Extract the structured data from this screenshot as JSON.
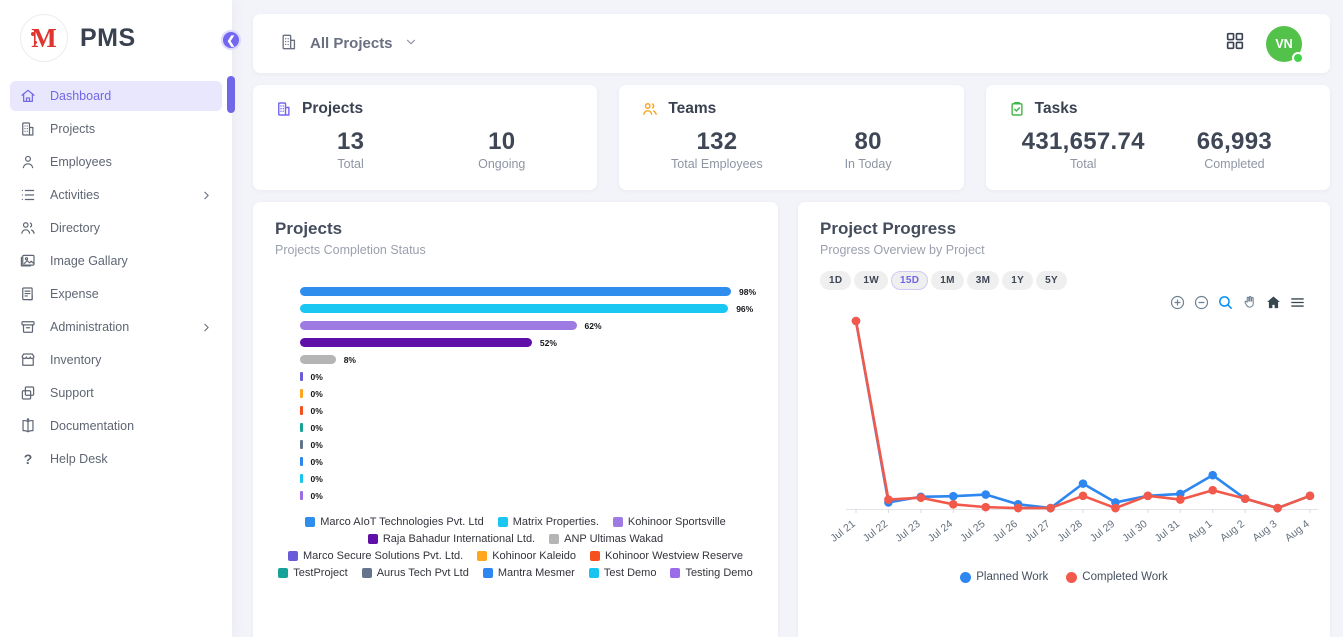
{
  "app": {
    "name": "PMS",
    "logo_letter": "M"
  },
  "sidebar": {
    "items": [
      {
        "label": "Dashboard",
        "icon": "home-icon",
        "active": true,
        "has_submenu": false
      },
      {
        "label": "Projects",
        "icon": "building-icon",
        "active": false,
        "has_submenu": false
      },
      {
        "label": "Employees",
        "icon": "person-icon",
        "active": false,
        "has_submenu": false
      },
      {
        "label": "Activities",
        "icon": "list-icon",
        "active": false,
        "has_submenu": true
      },
      {
        "label": "Directory",
        "icon": "people-icon",
        "active": false,
        "has_submenu": false
      },
      {
        "label": "Image Gallary",
        "icon": "image-icon",
        "active": false,
        "has_submenu": false
      },
      {
        "label": "Expense",
        "icon": "receipt-icon",
        "active": false,
        "has_submenu": false
      },
      {
        "label": "Administration",
        "icon": "archive-icon",
        "active": false,
        "has_submenu": true
      },
      {
        "label": "Inventory",
        "icon": "store-icon",
        "active": false,
        "has_submenu": false
      },
      {
        "label": "Support",
        "icon": "copy-icon",
        "active": false,
        "has_submenu": false
      },
      {
        "label": "Documentation",
        "icon": "book-icon",
        "active": false,
        "has_submenu": false
      },
      {
        "label": "Help Desk",
        "icon": "question-icon",
        "active": false,
        "has_submenu": false
      }
    ]
  },
  "header": {
    "filter_label": "All Projects",
    "avatar_initials": "VN"
  },
  "stats": [
    {
      "title": "Projects",
      "icon": "building-icon",
      "icon_color": "#7367f0",
      "metrics": [
        {
          "value": "13",
          "label": "Total"
        },
        {
          "value": "10",
          "label": "Ongoing"
        }
      ]
    },
    {
      "title": "Teams",
      "icon": "people-icon",
      "icon_color": "#f5a623",
      "metrics": [
        {
          "value": "132",
          "label": "Total Employees"
        },
        {
          "value": "80",
          "label": "In Today"
        }
      ]
    },
    {
      "title": "Tasks",
      "icon": "clipboard-check-icon",
      "icon_color": "#43b649",
      "metrics": [
        {
          "value": "431,657.74",
          "label": "Total"
        },
        {
          "value": "66,993",
          "label": "Completed"
        }
      ]
    }
  ],
  "panels": {
    "projects": {
      "title": "Projects",
      "subtitle": "Projects Completion Status"
    },
    "progress": {
      "title": "Project Progress",
      "subtitle": "Progress Overview by Project",
      "ranges": [
        "1D",
        "1W",
        "15D",
        "1M",
        "3M",
        "1Y",
        "5Y"
      ],
      "active_range": "15D"
    }
  },
  "chart_data": [
    {
      "type": "bar",
      "orientation": "horizontal",
      "title": "Projects",
      "subtitle": "Projects Completion Status",
      "unit": "%",
      "xlim": [
        0,
        100
      ],
      "legend_position": "bottom",
      "categories": [
        "Marco AIoT Technologies Pvt. Ltd",
        "Matrix Properties.",
        "Kohinoor Sportsville",
        "Raja Bahadur International Ltd.",
        "ANP Ultimas Wakad",
        "Marco Secure Solutions Pvt. Ltd.",
        "Kohinoor Kaleido",
        "Kohinoor Westview Reserve",
        "TestProject",
        "Aurus Tech Pvt Ltd",
        "Mantra Mesmer",
        "Test Demo",
        "Testing Demo"
      ],
      "values": [
        98,
        96,
        62,
        52,
        8,
        0,
        0,
        0,
        0,
        0,
        0,
        0,
        0
      ],
      "colors": [
        "#2F8DEE",
        "#1AC6F2",
        "#9D7BE3",
        "#5E10A8",
        "#B5B5B5",
        "#6A5BD8",
        "#FFA51F",
        "#F4511E",
        "#17A398",
        "#64748B",
        "#2E86F0",
        "#18C5F0",
        "#9B6CE8"
      ]
    },
    {
      "type": "line",
      "title": "Project Progress",
      "subtitle": "Progress Overview by Project",
      "ylim": [
        0,
        105
      ],
      "grid": false,
      "legend_position": "bottom",
      "x": [
        "Jul 21",
        "Jul 22",
        "Jul 23",
        "Jul 24",
        "Jul 25",
        "Jul 26",
        "Jul 27",
        "Jul 28",
        "Jul 29",
        "Jul 30",
        "Jul 31",
        "Aug 1",
        "Aug 2",
        "Aug 3",
        "Aug 4"
      ],
      "series": [
        {
          "name": "Planned Work",
          "color": "#2E86F0",
          "values": [
            100,
            3.5,
            6.5,
            6.8,
            7.7,
            2.5,
            0.5,
            13.5,
            3.5,
            7,
            8,
            18,
            5.5,
            0.5,
            7
          ]
        },
        {
          "name": "Completed Work",
          "color": "#F2594B",
          "values": [
            100,
            5,
            6,
            2.5,
            1,
            0.5,
            0.5,
            7,
            0.5,
            7,
            5,
            10,
            5.5,
            0.5,
            7
          ]
        }
      ]
    }
  ]
}
